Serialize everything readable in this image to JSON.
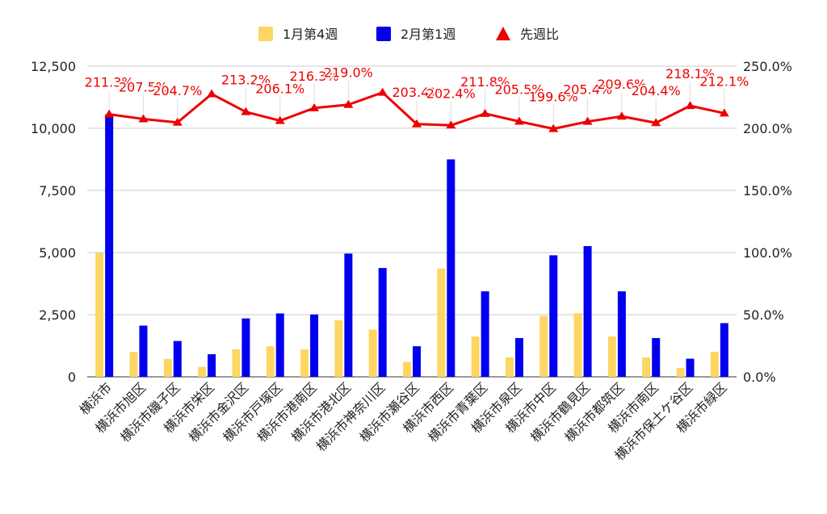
{
  "chart_data": {
    "type": "bar",
    "title": "",
    "categories": [
      "横浜市",
      "横浜市旭区",
      "横浜市磯子区",
      "横浜市栄区",
      "横浜市金沢区",
      "横浜市戸塚区",
      "横浜市港南区",
      "横浜市港北区",
      "横浜市神奈川区",
      "横浜市瀬谷区",
      "横浜市西区",
      "横浜市青葉区",
      "横浜市泉区",
      "横浜市中区",
      "横浜市鶴見区",
      "横浜市都筑区",
      "横浜市南区",
      "横浜市保土ケ谷区",
      "横浜市緑区"
    ],
    "series": [
      {
        "name": "1月第4週",
        "type": "bar",
        "axis": "left",
        "color": "#fdd663",
        "values": [
          4980,
          1000,
          720,
          400,
          1110,
          1230,
          1100,
          2280,
          1900,
          600,
          4360,
          1620,
          780,
          2450,
          2560,
          1620,
          780,
          350,
          1010
        ]
      },
      {
        "name": "2月第1週",
        "type": "bar",
        "axis": "left",
        "color": "#0000ee",
        "values": [
          10560,
          2060,
          1440,
          910,
          2350,
          2550,
          2510,
          4960,
          4380,
          1230,
          8750,
          3440,
          1560,
          4890,
          5260,
          3440,
          1560,
          730,
          2160
        ]
      },
      {
        "name": "先週比",
        "type": "line",
        "axis": "right",
        "color": "#ee0000",
        "marker": "triangle",
        "values": [
          211.3,
          207.5,
          204.7,
          227.6,
          213.2,
          206.1,
          216.3,
          219.0,
          228.8,
          203.4,
          202.4,
          211.8,
          205.5,
          199.6,
          205.4,
          209.6,
          204.4,
          218.1,
          212.1
        ]
      }
    ],
    "data_labels": [
      "211.3%",
      "207.5%",
      "204.7%",
      "",
      "213.2%",
      "206.1%",
      "216.3%",
      "219.0%",
      "",
      "203.4%",
      "202.4%",
      "211.8%",
      "205.5%",
      "199.6%",
      "205.4%",
      "209.6%",
      "204.4%",
      "218.1%",
      "212.1%"
    ],
    "y_left": {
      "min": 0,
      "max": 12500,
      "ticks": [
        "0",
        "2,500",
        "5,000",
        "7,500",
        "10,000",
        "12,500"
      ],
      "tick_values": [
        0,
        2500,
        5000,
        7500,
        10000,
        12500
      ]
    },
    "y_right": {
      "min": 0,
      "max": 250,
      "ticks": [
        "0.0%",
        "50.0%",
        "100.0%",
        "150.0%",
        "200.0%",
        "250.0%"
      ],
      "tick_values": [
        0,
        50,
        100,
        150,
        200,
        250
      ]
    },
    "legend_position": "top-center",
    "grid": true,
    "colors": {
      "bar1": "#fdd663",
      "bar2": "#0000ee",
      "line": "#ee0000",
      "grid": "#cccccc",
      "text": "#222222",
      "label": "#ee0000"
    }
  }
}
